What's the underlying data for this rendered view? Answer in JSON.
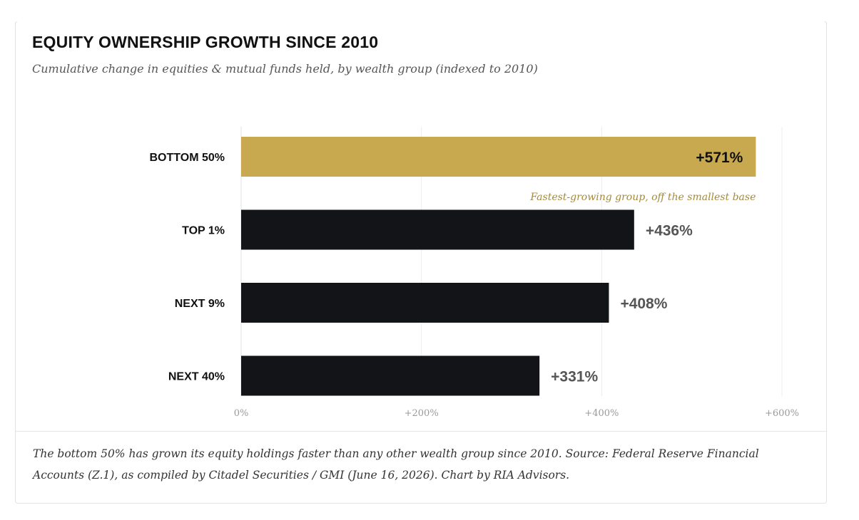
{
  "chart_data": {
    "type": "bar",
    "orientation": "horizontal",
    "title": "EQUITY OWNERSHIP GROWTH SINCE 2010",
    "subtitle": "Cumulative change in equities & mutual funds held, by wealth group (indexed to 2010)",
    "categories": [
      "BOTTOM 50%",
      "TOP 1%",
      "NEXT 9%",
      "NEXT 40%"
    ],
    "values": [
      571,
      436,
      408,
      331
    ],
    "value_labels": [
      "+571%",
      "+436%",
      "+408%",
      "+331%"
    ],
    "xlim": [
      0,
      600
    ],
    "x_ticks": [
      0,
      200,
      400,
      600
    ],
    "x_tick_labels": [
      "0%",
      "+200%",
      "+400%",
      "+600%"
    ],
    "grid": "vertical",
    "highlight_category": "BOTTOM 50%",
    "annotation": "Fastest-growing group, off the smallest base",
    "colors": {
      "highlight": "#c9a94f",
      "bar": "#121418",
      "annotation": "#a48a3d",
      "value_label": "#555555",
      "top_rule": "#a95341"
    }
  },
  "footnote": "The bottom 50% has grown its equity holdings faster than any other wealth group since 2010. Source: Federal Reserve Financial Accounts (Z.1), as compiled by Citadel Securities / GMI (June 16, 2026). Chart by RIA Advisors."
}
